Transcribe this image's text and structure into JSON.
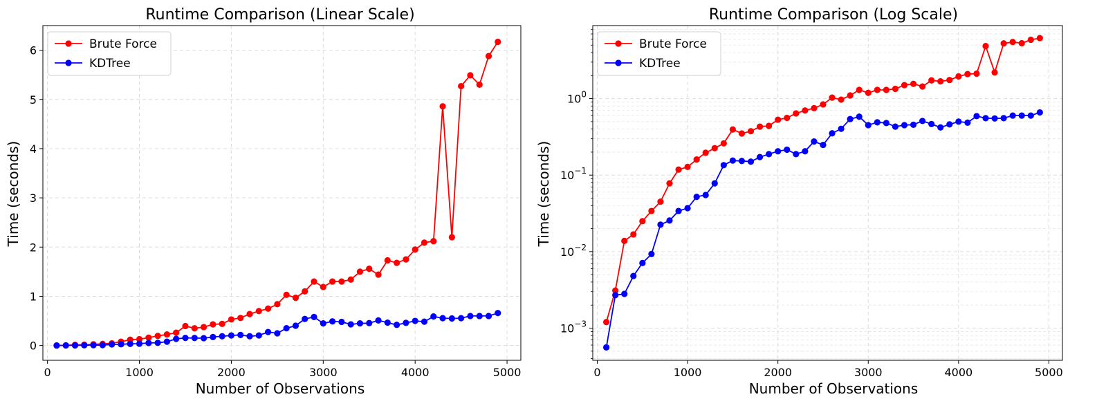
{
  "chart_data": [
    {
      "type": "line",
      "title": "Runtime Comparison (Linear Scale)",
      "xlabel": "Number of Observations",
      "ylabel": "Time (seconds)",
      "yscale": "linear",
      "xlim": [
        -50,
        5150
      ],
      "ylim": [
        -0.3,
        6.5
      ],
      "xticks": [
        0,
        1000,
        2000,
        3000,
        4000,
        5000
      ],
      "yticks": [
        0,
        1,
        2,
        3,
        4,
        5,
        6
      ],
      "grid": true,
      "legend": "top-left",
      "x": [
        100,
        200,
        300,
        400,
        500,
        600,
        700,
        800,
        900,
        1000,
        1100,
        1200,
        1300,
        1400,
        1500,
        1600,
        1700,
        1800,
        1900,
        2000,
        2100,
        2200,
        2300,
        2400,
        2500,
        2600,
        2700,
        2800,
        2900,
        3000,
        3100,
        3200,
        3300,
        3400,
        3500,
        3600,
        3700,
        3800,
        3900,
        4000,
        4100,
        4200,
        4300,
        4400,
        4500,
        4600,
        4700,
        4800,
        4900
      ],
      "series": [
        {
          "name": "Brute Force",
          "color": "#ff0000",
          "values": [
            0.0012,
            0.0031,
            0.0138,
            0.0168,
            0.025,
            0.034,
            0.045,
            0.078,
            0.118,
            0.128,
            0.16,
            0.196,
            0.225,
            0.26,
            0.395,
            0.35,
            0.375,
            0.43,
            0.44,
            0.53,
            0.56,
            0.64,
            0.7,
            0.75,
            0.84,
            1.03,
            0.97,
            1.1,
            1.3,
            1.19,
            1.3,
            1.3,
            1.34,
            1.5,
            1.56,
            1.44,
            1.73,
            1.68,
            1.75,
            1.95,
            2.09,
            2.12,
            4.86,
            2.2,
            5.27,
            5.49,
            5.3,
            5.88,
            6.17
          ]
        },
        {
          "name": "KDTree",
          "color": "#0000ff",
          "values": [
            0.00056,
            0.0027,
            0.0028,
            0.0048,
            0.0071,
            0.0093,
            0.0225,
            0.0255,
            0.034,
            0.037,
            0.052,
            0.055,
            0.078,
            0.135,
            0.155,
            0.153,
            0.15,
            0.172,
            0.188,
            0.205,
            0.215,
            0.188,
            0.205,
            0.275,
            0.248,
            0.352,
            0.403,
            0.54,
            0.58,
            0.45,
            0.49,
            0.48,
            0.43,
            0.45,
            0.455,
            0.51,
            0.465,
            0.42,
            0.46,
            0.5,
            0.485,
            0.59,
            0.555,
            0.55,
            0.555,
            0.6,
            0.6,
            0.6,
            0.66
          ]
        }
      ]
    },
    {
      "type": "line",
      "title": "Runtime Comparison (Log Scale)",
      "xlabel": "Number of Observations",
      "ylabel": "Time (seconds)",
      "yscale": "log",
      "xlim": [
        -50,
        5150
      ],
      "ylim": [
        0.00038,
        9.0
      ],
      "xticks": [
        0,
        1000,
        2000,
        3000,
        4000,
        5000
      ],
      "yticks": [
        0.001,
        0.01,
        0.1,
        1
      ],
      "ytick_labels": [
        {
          "base": "10",
          "exp": "−3"
        },
        {
          "base": "10",
          "exp": "−2"
        },
        {
          "base": "10",
          "exp": "−1"
        },
        {
          "base": "10",
          "exp": "0"
        }
      ],
      "grid": true,
      "minor_grid": true,
      "legend": "top-left",
      "x": [
        100,
        200,
        300,
        400,
        500,
        600,
        700,
        800,
        900,
        1000,
        1100,
        1200,
        1300,
        1400,
        1500,
        1600,
        1700,
        1800,
        1900,
        2000,
        2100,
        2200,
        2300,
        2400,
        2500,
        2600,
        2700,
        2800,
        2900,
        3000,
        3100,
        3200,
        3300,
        3400,
        3500,
        3600,
        3700,
        3800,
        3900,
        4000,
        4100,
        4200,
        4300,
        4400,
        4500,
        4600,
        4700,
        4800,
        4900
      ],
      "series": [
        {
          "name": "Brute Force",
          "color": "#ff0000",
          "values": [
            0.0012,
            0.0031,
            0.0138,
            0.0168,
            0.025,
            0.034,
            0.045,
            0.078,
            0.118,
            0.128,
            0.16,
            0.196,
            0.225,
            0.26,
            0.395,
            0.35,
            0.375,
            0.43,
            0.44,
            0.53,
            0.56,
            0.64,
            0.7,
            0.75,
            0.84,
            1.03,
            0.97,
            1.1,
            1.3,
            1.19,
            1.3,
            1.3,
            1.34,
            1.5,
            1.56,
            1.44,
            1.73,
            1.68,
            1.75,
            1.95,
            2.09,
            2.12,
            4.86,
            2.2,
            5.27,
            5.49,
            5.3,
            5.88,
            6.17
          ]
        },
        {
          "name": "KDTree",
          "color": "#0000ff",
          "values": [
            0.00056,
            0.0027,
            0.0028,
            0.0048,
            0.0071,
            0.0093,
            0.0225,
            0.0255,
            0.034,
            0.037,
            0.052,
            0.055,
            0.078,
            0.135,
            0.155,
            0.153,
            0.15,
            0.172,
            0.188,
            0.205,
            0.215,
            0.188,
            0.205,
            0.275,
            0.248,
            0.352,
            0.403,
            0.54,
            0.58,
            0.45,
            0.49,
            0.48,
            0.43,
            0.45,
            0.455,
            0.51,
            0.465,
            0.42,
            0.46,
            0.5,
            0.485,
            0.59,
            0.555,
            0.55,
            0.555,
            0.6,
            0.6,
            0.6,
            0.66
          ]
        }
      ]
    }
  ]
}
